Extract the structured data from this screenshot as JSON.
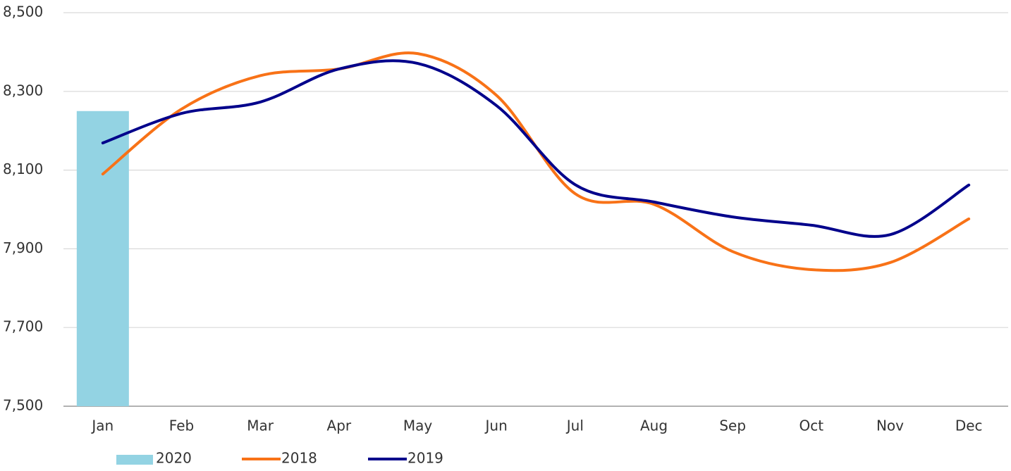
{
  "chart_data": {
    "type": "combo",
    "categories": [
      "Jan",
      "Feb",
      "Mar",
      "Apr",
      "May",
      "Jun",
      "Jul",
      "Aug",
      "Sep",
      "Oct",
      "Nov",
      "Dec"
    ],
    "series": [
      {
        "name": "2020",
        "type": "bar",
        "color": "#93d3e3",
        "values": [
          8250,
          null,
          null,
          null,
          null,
          null,
          null,
          null,
          null,
          null,
          null,
          null
        ]
      },
      {
        "name": "2018",
        "type": "line",
        "color": "#f87217",
        "values": [
          8090,
          8255,
          8340,
          8357,
          8396,
          8290,
          8040,
          8013,
          7893,
          7847,
          7865,
          7976
        ]
      },
      {
        "name": "2019",
        "type": "line",
        "color": "#00008b",
        "values": [
          8169,
          8244,
          8273,
          8357,
          8371,
          8264,
          8063,
          8019,
          7981,
          7960,
          7936,
          8062
        ]
      }
    ],
    "ylim": [
      7500,
      8500
    ],
    "yticks": [
      {
        "value": 7500,
        "label": "7,500"
      },
      {
        "value": 7700,
        "label": "7,700"
      },
      {
        "value": 7900,
        "label": "7,900"
      },
      {
        "value": 8100,
        "label": "8,100"
      },
      {
        "value": 8300,
        "label": "8,300"
      },
      {
        "value": 8500,
        "label": "8,500"
      }
    ],
    "grid": true,
    "smooth": true,
    "legend": "bottom"
  }
}
